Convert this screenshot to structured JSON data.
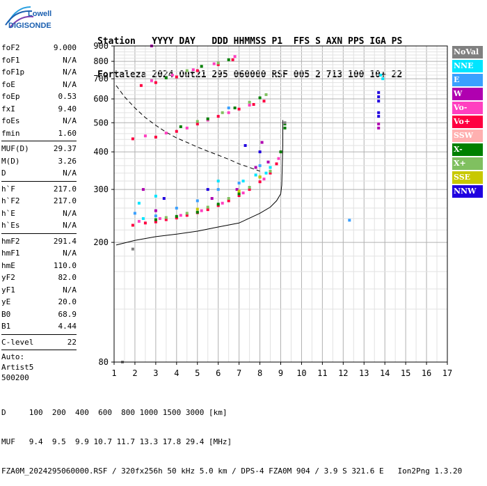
{
  "logo": {
    "brand": "Lowell",
    "product": "DIGISONDE"
  },
  "header": {
    "line1": "Station   YYYY DAY   DDD HHMMSS P1  FFS S AXN PPS IGA PS",
    "line2": "Fortaleza 2024 Out21 295 060000 RSF 005 2 713 100 10+ 22"
  },
  "params": [
    {
      "label": "foF2",
      "value": "9.000"
    },
    {
      "label": "foF1",
      "value": "N/A"
    },
    {
      "label": "foF1p",
      "value": "N/A"
    },
    {
      "label": "foE",
      "value": "N/A"
    },
    {
      "label": "foEp",
      "value": "0.53"
    },
    {
      "label": "fxI",
      "value": "9.40"
    },
    {
      "label": "foEs",
      "value": "N/A"
    },
    {
      "label": "fmin",
      "value": "1.60"
    },
    {
      "sep": true
    },
    {
      "label": "MUF(D)",
      "value": "29.37"
    },
    {
      "label": "M(D)",
      "value": "3.26"
    },
    {
      "label": "D",
      "value": "N/A"
    },
    {
      "sep": true
    },
    {
      "label": "h`F",
      "value": "217.0"
    },
    {
      "label": "h`F2",
      "value": "217.0"
    },
    {
      "label": "h`E",
      "value": "N/A"
    },
    {
      "label": "h`Es",
      "value": "N/A"
    },
    {
      "sep": true
    },
    {
      "label": "hmF2",
      "value": "291.4"
    },
    {
      "label": "hmF1",
      "value": "N/A"
    },
    {
      "label": "hmE",
      "value": "110.0"
    },
    {
      "label": "yF2",
      "value": "82.0"
    },
    {
      "label": "yF1",
      "value": "N/A"
    },
    {
      "label": "yE",
      "value": "20.0"
    },
    {
      "label": "B0",
      "value": "68.9"
    },
    {
      "label": "B1",
      "value": "4.44"
    },
    {
      "sep": true
    },
    {
      "label": "C-level",
      "value": "22"
    },
    {
      "sep": true
    },
    {
      "text": "Auto:"
    },
    {
      "text": "Artist5"
    },
    {
      "text": "500200"
    }
  ],
  "legend": [
    {
      "label": "NoVal",
      "color": "#808080"
    },
    {
      "label": "NNE",
      "color": "#00e5ff"
    },
    {
      "label": "E",
      "color": "#3aa0ff"
    },
    {
      "label": "W",
      "color": "#b000b0"
    },
    {
      "label": "Vo-",
      "color": "#ff40c0"
    },
    {
      "label": "Vo+",
      "color": "#ff0040"
    },
    {
      "label": "SSW",
      "color": "#ffb0b0"
    },
    {
      "label": "X-",
      "color": "#008000"
    },
    {
      "label": "X+",
      "color": "#80c060"
    },
    {
      "label": "SSE",
      "color": "#c8c800"
    },
    {
      "label": "NNW",
      "color": "#2000e0"
    }
  ],
  "footer": {
    "line1": "D     100  200  400  600  800 1000 1500 3000 [km]",
    "line2": "MUF   9.4  9.5  9.9 10.7 11.7 13.3 17.8 29.4 [MHz]",
    "line3": "FZA0M_2024295060000.RSF / 320fx256h 50 kHz 5.0 km / DPS-4 FZA0M 904 / 3.9 S 321.6 E   Ion2Png 1.3.20"
  },
  "chart_data": {
    "type": "scatter",
    "x_ticks": [
      1,
      2,
      3,
      4,
      5,
      6,
      7,
      8,
      9,
      10,
      11,
      12,
      13,
      14,
      15,
      16,
      17
    ],
    "y_ticks": [
      80,
      200,
      300,
      400,
      500,
      600,
      700,
      800,
      900
    ],
    "xlim": [
      1,
      17
    ],
    "ylim": [
      80,
      900
    ],
    "y_scale": "log",
    "grid": true,
    "series": [
      {
        "name": "Vo+",
        "color": "#ff0040",
        "points": [
          [
            1.9,
            228
          ],
          [
            2.5,
            232
          ],
          [
            3.0,
            234
          ],
          [
            3.5,
            238
          ],
          [
            4.0,
            241
          ],
          [
            4.5,
            246
          ],
          [
            5.0,
            251
          ],
          [
            5.5,
            257
          ],
          [
            6.0,
            265
          ],
          [
            6.5,
            275
          ],
          [
            7.0,
            286
          ],
          [
            7.5,
            300
          ],
          [
            8.0,
            318
          ],
          [
            8.5,
            340
          ],
          [
            8.8,
            365
          ],
          [
            9.0,
            400
          ],
          [
            1.9,
            442
          ],
          [
            3.0,
            448
          ],
          [
            4.0,
            468
          ],
          [
            5.0,
            495
          ],
          [
            6.0,
            525
          ],
          [
            7.0,
            555
          ],
          [
            7.7,
            575
          ],
          [
            8.2,
            590
          ],
          [
            2.3,
            665
          ],
          [
            3.0,
            680
          ],
          [
            4.0,
            710
          ],
          [
            5.0,
            745
          ],
          [
            6.0,
            780
          ],
          [
            6.7,
            810
          ]
        ]
      },
      {
        "name": "Vo-",
        "color": "#ff40c0",
        "points": [
          [
            2.2,
            235
          ],
          [
            3.2,
            240
          ],
          [
            4.2,
            246
          ],
          [
            5.2,
            255
          ],
          [
            6.2,
            270
          ],
          [
            7.2,
            292
          ],
          [
            8.2,
            325
          ],
          [
            8.9,
            380
          ],
          [
            2.5,
            452
          ],
          [
            3.5,
            462
          ],
          [
            4.5,
            480
          ],
          [
            5.5,
            510
          ],
          [
            6.5,
            540
          ],
          [
            7.5,
            572
          ],
          [
            2.8,
            690
          ],
          [
            3.8,
            720
          ],
          [
            4.8,
            750
          ],
          [
            5.8,
            785
          ],
          [
            6.8,
            830
          ]
        ]
      },
      {
        "name": "X-",
        "color": "#008000",
        "points": [
          [
            3.0,
            238
          ],
          [
            4.0,
            244
          ],
          [
            5.0,
            252
          ],
          [
            6.0,
            268
          ],
          [
            7.0,
            290
          ],
          [
            8.0,
            330
          ],
          [
            9.0,
            400
          ],
          [
            9.2,
            495
          ],
          [
            9.2,
            480
          ],
          [
            4.2,
            485
          ],
          [
            5.5,
            515
          ],
          [
            6.8,
            560
          ],
          [
            8.0,
            605
          ],
          [
            3.5,
            705
          ],
          [
            5.2,
            770
          ],
          [
            6.5,
            810
          ]
        ]
      },
      {
        "name": "X+",
        "color": "#80c060",
        "points": [
          [
            3.5,
            242
          ],
          [
            4.5,
            250
          ],
          [
            5.5,
            262
          ],
          [
            6.5,
            280
          ],
          [
            7.5,
            305
          ],
          [
            8.5,
            345
          ],
          [
            5.0,
            505
          ],
          [
            6.2,
            540
          ],
          [
            7.5,
            585
          ],
          [
            8.3,
            620
          ],
          [
            4.5,
            745
          ],
          [
            6.0,
            790
          ]
        ]
      },
      {
        "name": "NNE",
        "color": "#00e5ff",
        "points": [
          [
            2.2,
            270
          ],
          [
            2.4,
            240
          ],
          [
            3.0,
            285
          ],
          [
            6.0,
            320
          ],
          [
            7.2,
            320
          ],
          [
            7.8,
            335
          ],
          [
            8.5,
            355
          ],
          [
            8.3,
            340
          ],
          [
            13.8,
            720
          ],
          [
            13.9,
            700
          ]
        ]
      },
      {
        "name": "E",
        "color": "#3aa0ff",
        "points": [
          [
            2.0,
            250
          ],
          [
            3.0,
            245
          ],
          [
            4.0,
            260
          ],
          [
            5.0,
            275
          ],
          [
            6.0,
            300
          ],
          [
            7.0,
            315
          ],
          [
            8.0,
            360
          ],
          [
            6.5,
            560
          ],
          [
            12.3,
            237
          ]
        ]
      },
      {
        "name": "W",
        "color": "#b000b0",
        "points": [
          [
            2.4,
            300
          ],
          [
            3.0,
            255
          ],
          [
            5.7,
            280
          ],
          [
            6.9,
            300
          ],
          [
            7.8,
            355
          ],
          [
            8.4,
            370
          ],
          [
            8.1,
            430
          ],
          [
            2.8,
            900
          ],
          [
            13.7,
            495
          ],
          [
            13.7,
            480
          ]
        ]
      },
      {
        "name": "SSE",
        "color": "#c8c800",
        "points": [
          [
            5.0,
            258
          ],
          [
            7.0,
            296
          ],
          [
            8.0,
            330
          ]
        ]
      },
      {
        "name": "NNW",
        "color": "#2000e0",
        "points": [
          [
            3.4,
            280
          ],
          [
            5.5,
            300
          ],
          [
            7.3,
            420
          ],
          [
            8.0,
            400
          ],
          [
            13.7,
            630
          ],
          [
            13.7,
            610
          ],
          [
            13.7,
            590
          ],
          [
            13.7,
            540
          ],
          [
            13.7,
            525
          ]
        ]
      },
      {
        "name": "NoVal",
        "color": "#808080",
        "points": [
          [
            1.9,
            190
          ],
          [
            1.4,
            80
          ],
          [
            9.2,
            500
          ]
        ]
      }
    ],
    "trace_solid": {
      "x": [
        1.1,
        2,
        3,
        4,
        5,
        6,
        7,
        8,
        8.5,
        8.8,
        9.0,
        9.05,
        9.1,
        9.1
      ],
      "y": [
        196,
        203,
        209,
        213,
        218,
        225,
        232,
        250,
        262,
        275,
        290,
        310,
        420,
        510
      ]
    },
    "trace_dashed": {
      "x": [
        1.1,
        1.5,
        2.0,
        2.5,
        3.0,
        3.5,
        4.0,
        4.5,
        5.0,
        5.5,
        6.0,
        6.5,
        7.0,
        7.5,
        8.0
      ],
      "y": [
        665,
        610,
        560,
        520,
        490,
        465,
        445,
        430,
        415,
        402,
        390,
        378,
        365,
        355,
        345
      ]
    }
  }
}
